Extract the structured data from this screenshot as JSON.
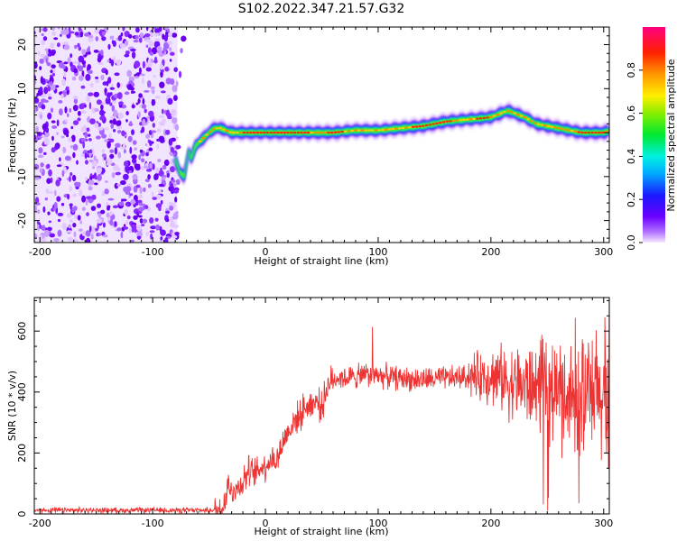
{
  "title": "S102.2022.347.21.57.G32",
  "chart_data": [
    {
      "type": "heatmap",
      "name": "spectrogram",
      "xlabel": "Height of straight line (km)",
      "ylabel": "Frequency (Hz)",
      "xlim": [
        -205,
        305
      ],
      "ylim": [
        -25,
        24
      ],
      "xticks": [
        -200,
        -100,
        0,
        100,
        200,
        300
      ],
      "yticks": [
        -20,
        -10,
        0,
        10,
        20
      ],
      "noise_region_x": [
        -205,
        -78
      ],
      "trace": {
        "x": [
          -80,
          -76,
          -72,
          -70,
          -68,
          -66,
          -62,
          -58,
          -54,
          -50,
          -45,
          -40,
          -30,
          -20,
          0,
          20,
          40,
          60,
          80,
          100,
          120,
          140,
          160,
          180,
          190,
          200,
          210,
          215,
          220,
          230,
          240,
          250,
          260,
          270,
          280,
          290,
          300,
          305
        ],
        "y": [
          -6,
          -9,
          -10,
          -7,
          -4,
          -6,
          -3,
          -2,
          -1,
          0,
          1,
          1,
          0,
          0,
          0,
          0,
          0,
          0,
          0.5,
          0.5,
          1,
          1.5,
          2.5,
          3,
          3.2,
          3.5,
          4.5,
          5,
          4.5,
          3.5,
          2,
          1.5,
          1,
          0.5,
          0,
          0,
          0,
          0.5
        ]
      },
      "colorbar": {
        "label": "Normalized spectral amplitude",
        "range": [
          0,
          1
        ],
        "ticks": [
          "0.0",
          "0.2",
          "0.4",
          "0.6",
          "0.8"
        ]
      }
    },
    {
      "type": "line",
      "name": "snr",
      "xlabel": "Height of straight line (km)",
      "ylabel": "SNR (10 * v/v)",
      "xlim": [
        -205,
        305
      ],
      "ylim": [
        0,
        710
      ],
      "xticks": [
        -200,
        -100,
        0,
        100,
        200,
        300
      ],
      "yticks": [
        0,
        200,
        400,
        600
      ],
      "color": "#ee3333",
      "x": [
        -205,
        -150,
        -100,
        -60,
        -45,
        -40,
        -36,
        -33,
        -30,
        -28,
        -25,
        -20,
        -15,
        -10,
        -5,
        0,
        5,
        10,
        15,
        20,
        25,
        30,
        35,
        40,
        45,
        50,
        55,
        60,
        65,
        70,
        80,
        90,
        100,
        110,
        120,
        140,
        160,
        180,
        200,
        220,
        240,
        260,
        280,
        300,
        305
      ],
      "y": [
        12,
        12,
        12,
        12,
        12,
        15,
        45,
        110,
        60,
        90,
        80,
        110,
        140,
        130,
        150,
        160,
        180,
        175,
        230,
        270,
        300,
        320,
        350,
        360,
        370,
        350,
        420,
        440,
        450,
        445,
        450,
        455,
        455,
        450,
        445,
        440,
        445,
        450,
        455,
        430,
        410,
        400,
        380,
        380,
        380
      ]
    }
  ]
}
